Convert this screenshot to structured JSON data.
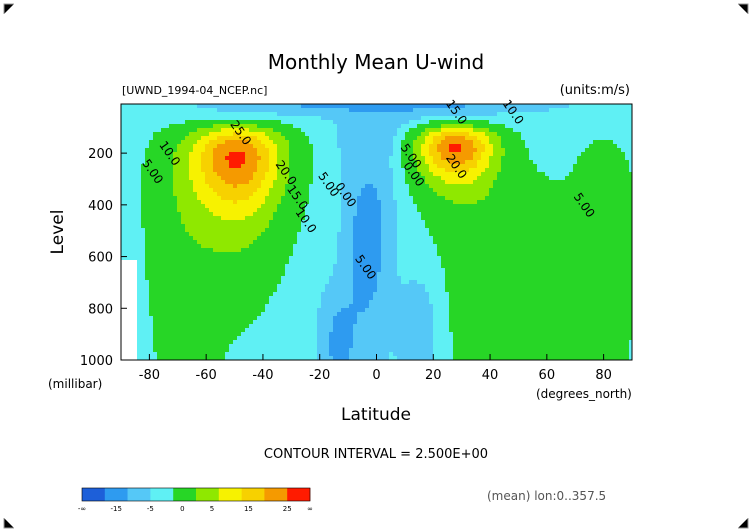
{
  "chart_data": {
    "type": "heatmap",
    "title": "Monthly Mean U-wind",
    "subtitle": "[UWND_1994-04_NCEP.nc]",
    "units_label": "(units:m/s)",
    "xlabel": "Latitude",
    "ylabel": "Level",
    "x_unit_label": "(degrees_north)",
    "y_unit_label": "(millibar)",
    "xlim": [
      -90,
      90
    ],
    "ylim": [
      1000,
      10
    ],
    "x_ticks": [
      -80,
      -60,
      -40,
      -20,
      0,
      20,
      40,
      60,
      80
    ],
    "x_tick_labels": [
      "-80",
      "-60",
      "-40",
      "-20",
      "0",
      "20",
      "40",
      "60",
      "80"
    ],
    "y_ticks": [
      200,
      400,
      600,
      800,
      1000
    ],
    "y_tick_labels": [
      "200",
      "400",
      "600",
      "800",
      "1000"
    ],
    "contour_interval_text": "CONTOUR INTERVAL = 2.500E+00",
    "mean_note": "(mean) lon:0..357.5",
    "contour_labels": [
      {
        "text": "25.0",
        "lat": -49,
        "lev": 130
      },
      {
        "text": "20.0",
        "lat": -33,
        "lev": 285
      },
      {
        "text": "15.0",
        "lat": -29,
        "lev": 380
      },
      {
        "text": "10.0",
        "lat": -74,
        "lev": 210
      },
      {
        "text": "10.0",
        "lat": -26,
        "lev": 470
      },
      {
        "text": "5.00",
        "lat": -80,
        "lev": 280
      },
      {
        "text": "5.00",
        "lat": -18,
        "lev": 330
      },
      {
        "text": "0.00",
        "lat": -12,
        "lev": 370
      },
      {
        "text": "5.00",
        "lat": 11,
        "lev": 220
      },
      {
        "text": "0.00",
        "lat": 12,
        "lev": 290
      },
      {
        "text": "5.00",
        "lat": -5,
        "lev": 650
      },
      {
        "text": "15.0",
        "lat": 27,
        "lev": 50
      },
      {
        "text": "10.0",
        "lat": 47,
        "lev": 50
      },
      {
        "text": "20.0",
        "lat": 27,
        "lev": 260
      },
      {
        "text": "5.00",
        "lat": 72,
        "lev": 410
      }
    ],
    "colorbar": {
      "colors": [
        "#1d5fd9",
        "#2e9bf0",
        "#55c8f7",
        "#5ff0f4",
        "#27d626",
        "#8fe800",
        "#f7f200",
        "#f7d100",
        "#f59a00",
        "#ff1b00"
      ],
      "tick_labels": [
        "-∞",
        "-15",
        "-5",
        "0",
        "5",
        "15",
        "25",
        "∞"
      ]
    }
  }
}
